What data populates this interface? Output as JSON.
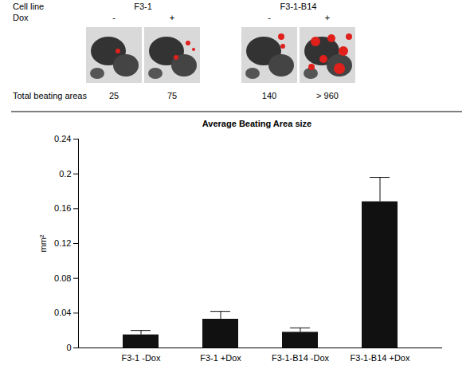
{
  "panels": {
    "row_labels": {
      "cell_line": "Cell line",
      "dox": "Dox",
      "total": "Total beating areas"
    },
    "cell_lines": [
      "F3-1",
      "F3-1-B14"
    ],
    "dox": [
      "-",
      "+",
      "-",
      "+"
    ],
    "total_beating_areas": [
      "25",
      "75",
      "140",
      "> 960"
    ]
  },
  "chart_data": {
    "type": "bar",
    "title": "Average Beating Area size",
    "y_label": "mm²",
    "categories": [
      "F3-1 -Dox",
      "F3-1 +Dox",
      "F3-1-B14 -Dox",
      "F3-1-B14 +Dox"
    ],
    "values": [
      0.015,
      0.033,
      0.018,
      0.168
    ],
    "errors": [
      0.005,
      0.009,
      0.005,
      0.028
    ],
    "color": "#111111",
    "ylim": [
      0,
      0.24
    ],
    "yticks": [
      0,
      0.04,
      0.08,
      0.12,
      0.16,
      0.2,
      0.24
    ],
    "grid": false
  }
}
